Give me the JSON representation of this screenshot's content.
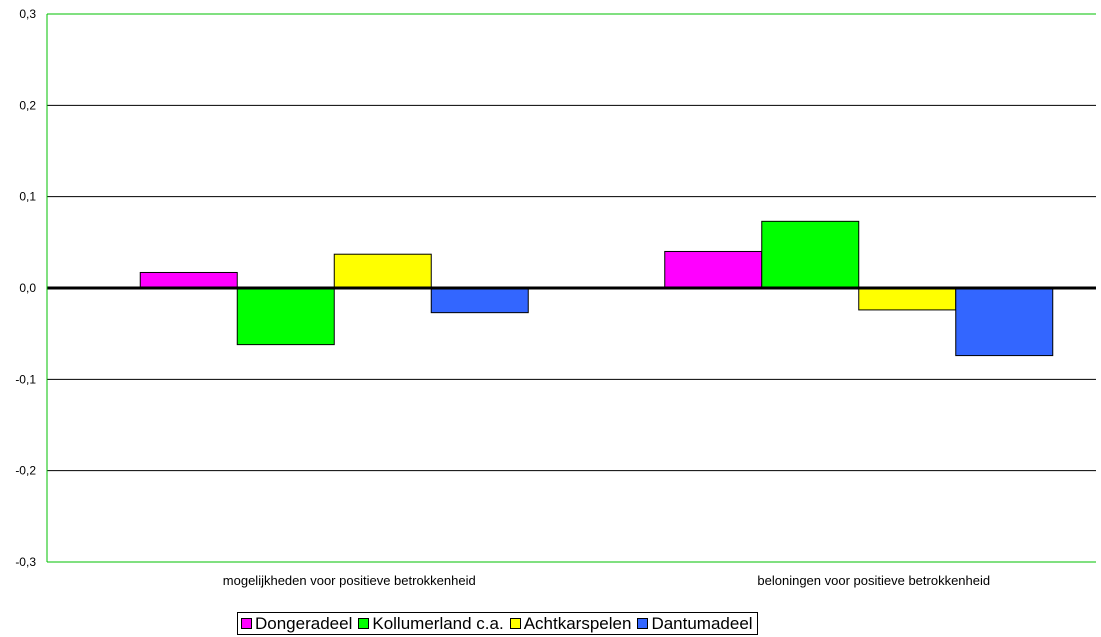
{
  "chart_data": {
    "type": "bar",
    "title": "",
    "xlabel": "",
    "ylabel": "",
    "ylim": [
      -0.3,
      0.3
    ],
    "y_ticks": [
      "-0,3",
      "-0,2",
      "-0,1",
      "0,0",
      "0,1",
      "0,2",
      "0,3"
    ],
    "y_tick_values": [
      -0.3,
      -0.2,
      -0.1,
      0.0,
      0.1,
      0.2,
      0.3
    ],
    "grid": true,
    "legend_position": "bottom",
    "categories": [
      "mogelijkheden voor positieve betrokkenheid",
      "beloningen voor positieve betrokkenheid"
    ],
    "series": [
      {
        "name": "Dongeradeel",
        "color": "#ff00ff",
        "values": [
          0.017,
          0.04
        ]
      },
      {
        "name": "Kollumerland c.a.",
        "color": "#00ff00",
        "values": [
          -0.062,
          0.073
        ]
      },
      {
        "name": "Achtkarspelen",
        "color": "#ffff00",
        "values": [
          0.037,
          -0.024
        ]
      },
      {
        "name": "Dantumadeel",
        "color": "#3366ff",
        "values": [
          -0.027,
          -0.074
        ]
      }
    ]
  }
}
